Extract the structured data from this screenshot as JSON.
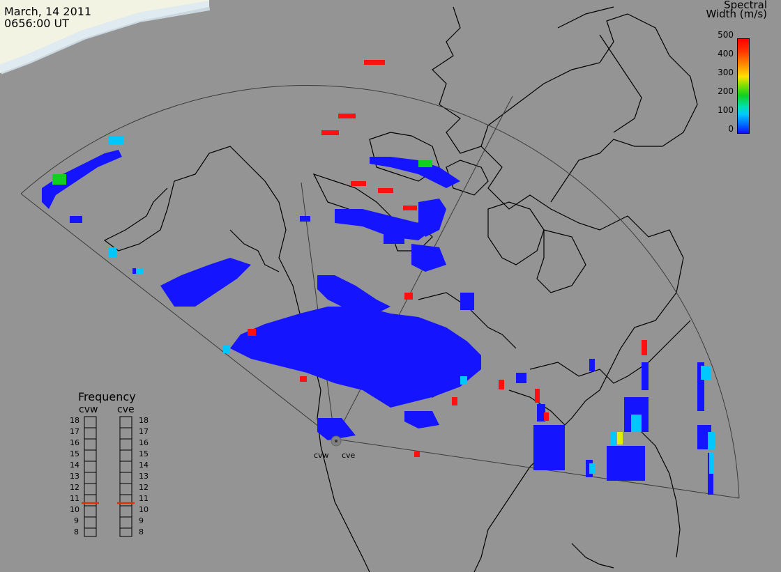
{
  "header": {
    "date": "March, 14 2011",
    "time": "0656:00 UT"
  },
  "colorbar": {
    "title_line1": "Spectral",
    "title_line2": "Width (m/s)",
    "ticks": [
      "500",
      "400",
      "300",
      "200",
      "100",
      "0"
    ],
    "range": [
      0,
      500
    ],
    "colors": [
      "#1010ff",
      "#00c8ff",
      "#10d020",
      "#ffe000",
      "#ff9000",
      "#ff0000"
    ]
  },
  "frequency_panel": {
    "title": "Frequency",
    "radars": [
      {
        "name": "cvw",
        "value_mhz": 10.8
      },
      {
        "name": "cve",
        "value_mhz": 10.8
      }
    ],
    "scale": [
      "18",
      "17",
      "16",
      "15",
      "14",
      "13",
      "12",
      "11",
      "10",
      "9",
      "8"
    ],
    "indicator_color": "#e03000"
  },
  "radar_labels": [
    "cvw",
    "cve"
  ],
  "colors": {
    "background": "#949494",
    "land_outline": "#000000",
    "scatter_low": "#1010ff",
    "scatter_mid": "#00c8ff",
    "scatter_high": "#ff0000"
  }
}
